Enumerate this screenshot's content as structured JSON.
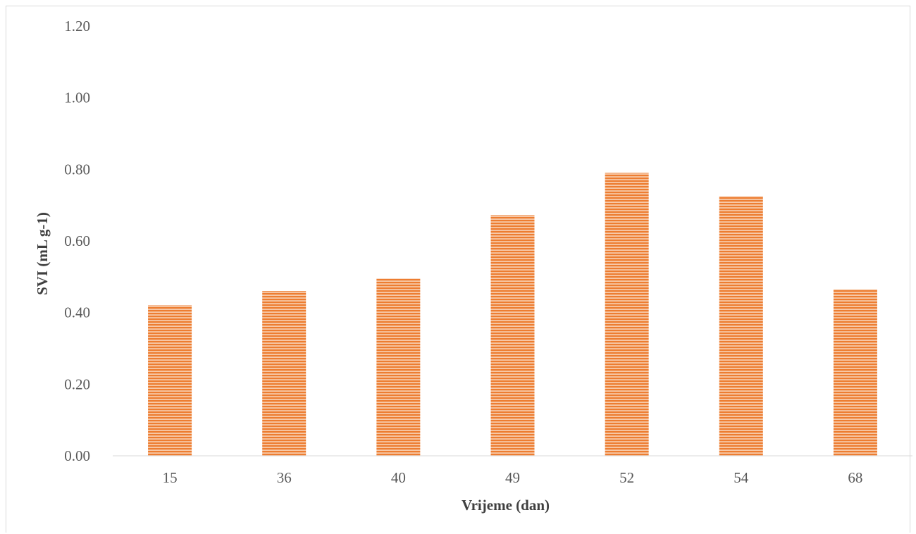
{
  "chart_data": {
    "type": "bar",
    "title": "",
    "xlabel": "Vrijeme (dan)",
    "ylabel": "SVI (mL g-1)",
    "categories": [
      "15",
      "36",
      "40",
      "49",
      "52",
      "54",
      "68"
    ],
    "values": [
      0.42,
      0.46,
      0.495,
      0.672,
      0.79,
      0.725,
      0.465
    ],
    "ylim": [
      0,
      1.2
    ],
    "yticks": [
      "0.00",
      "0.20",
      "0.40",
      "0.60",
      "0.80",
      "1.00",
      "1.20"
    ],
    "grid": false,
    "legend": "none",
    "bar_color": "#ED7D31",
    "bar_pattern": "horizontal-stripes"
  }
}
